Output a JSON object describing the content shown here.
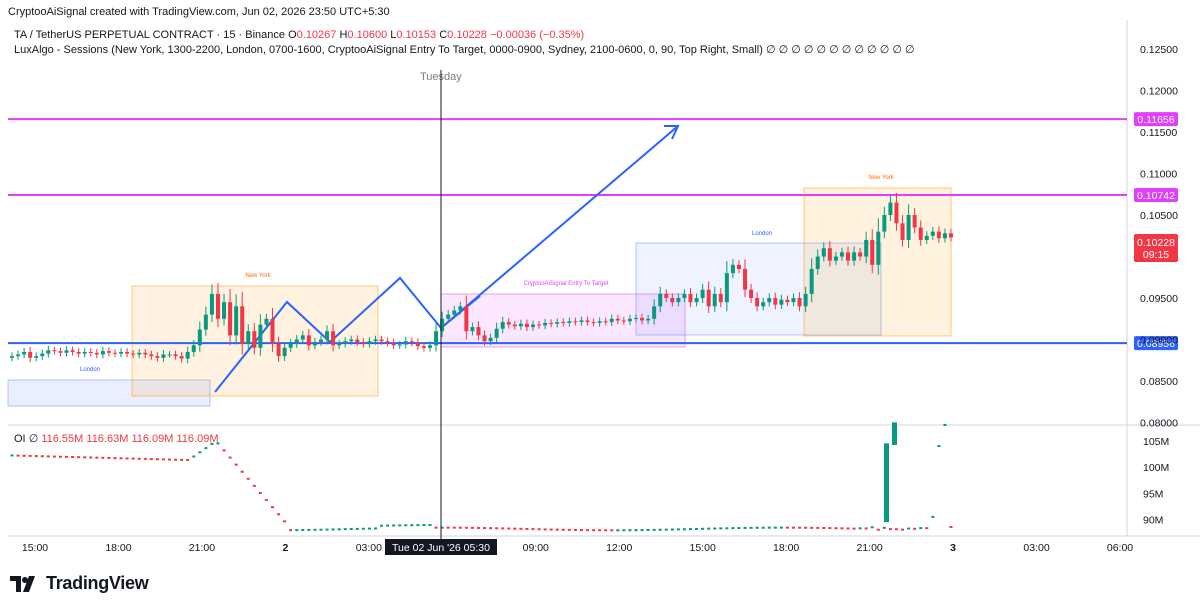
{
  "header": {
    "caption": "CryptooAiSignal created with TradingView.com, Jun 02, 2026 23:50 UTC+5:30"
  },
  "legend": {
    "symbol": "TA / TetherUS PERPETUAL CONTRACT · 15 · Binance",
    "o_label": "O",
    "o_value": "0.10267",
    "h_label": "H",
    "h_value": "0.10600",
    "l_label": "L",
    "l_value": "0.10153",
    "c_label": "C",
    "c_value": "0.10228",
    "change": "−0.00036 (−0.35%)",
    "indicators": "LuxAlgo - Sessions (New York, 1300-2200, London, 0700-1600, CryptooAiSignal  Entry To Target, 0000-0900, Sydney, 2100-0600, 0, 90, Top Right, Small)",
    "indicator_values": "∅ ∅ ∅ ∅ ∅ ∅ ∅ ∅ ∅ ∅ ∅ ∅"
  },
  "oi_legend": {
    "name": "OI",
    "null_symbol": "∅",
    "values": "116.55M  116.63M  116.09M  116.09M"
  },
  "day_label": "Tuesday",
  "sessions": {
    "london": "London",
    "new_york": "New York",
    "entry": "CryptooAiSignal  Entry To Target"
  },
  "brand": {
    "name": "TradingView"
  },
  "colors": {
    "up": "#089981",
    "down": "#f23645",
    "magenta": "#e040fb",
    "blue_line": "#2962ff",
    "price_red": "#f23645"
  },
  "chart_data": {
    "type": "candlestick",
    "title": "TA / TetherUS PERPETUAL CONTRACT · 15 · Binance",
    "price_axis": {
      "ylim": [
        0.0797,
        0.1285
      ],
      "ticks": [
        "0.12500",
        "0.12000",
        "0.11500",
        "0.11000",
        "0.10500",
        "0.10000",
        "0.09500",
        "0.09000",
        "0.08500",
        "0.08000"
      ]
    },
    "x_axis": {
      "ticks": [
        "15:00",
        "18:00",
        "21:00",
        "2",
        "03:00",
        "06:00",
        "09:00",
        "12:00",
        "15:00",
        "18:00",
        "21:00",
        "3",
        "03:00",
        "06:00"
      ],
      "crosshair_label": "Tue 02 Jun '26   05:30"
    },
    "horizontal_levels": [
      {
        "price": 0.11656,
        "label": "0.11656",
        "color": "#e040fb"
      },
      {
        "price": 0.10742,
        "label": "0.10742",
        "color": "#e040fb"
      },
      {
        "price": 0.08956,
        "label": "0.08956",
        "color": "#2962ff"
      }
    ],
    "last_price": {
      "value": "0.10228",
      "countdown": "09:15"
    },
    "candles_close": [
      0.088,
      0.0882,
      0.0885,
      0.0878,
      0.088,
      0.0883,
      0.0887,
      0.0886,
      0.0884,
      0.0887,
      0.0885,
      0.0883,
      0.0885,
      0.0884,
      0.0882,
      0.0886,
      0.0884,
      0.0883,
      0.0885,
      0.0883,
      0.0882,
      0.0884,
      0.0882,
      0.088,
      0.0878,
      0.0882,
      0.0882,
      0.088,
      0.0877,
      0.0885,
      0.0893,
      0.0912,
      0.093,
      0.0955,
      0.0925,
      0.0945,
      0.0905,
      0.094,
      0.0895,
      0.091,
      0.089,
      0.0918,
      0.0925,
      0.0895,
      0.088,
      0.089,
      0.0895,
      0.09,
      0.0905,
      0.0893,
      0.0897,
      0.09,
      0.091,
      0.0893,
      0.0895,
      0.0898,
      0.09,
      0.0897,
      0.0895,
      0.0898,
      0.09,
      0.0898,
      0.0896,
      0.0893,
      0.0894,
      0.0898,
      0.0896,
      0.0892,
      0.089,
      0.0893,
      0.091,
      0.0925,
      0.093,
      0.0935,
      0.094,
      0.091,
      0.0915,
      0.0905,
      0.0898,
      0.0902,
      0.0913,
      0.0921,
      0.0918,
      0.0916,
      0.0919,
      0.0915,
      0.0918,
      0.0917,
      0.092,
      0.0919,
      0.0921,
      0.092,
      0.0922,
      0.0921,
      0.0923,
      0.0921,
      0.092,
      0.0922,
      0.0921,
      0.0925,
      0.0923,
      0.0922,
      0.0925,
      0.0926,
      0.0923,
      0.0925,
      0.094,
      0.0955,
      0.095,
      0.0945,
      0.095,
      0.0955,
      0.0945,
      0.095,
      0.096,
      0.094,
      0.0955,
      0.0945,
      0.098,
      0.099,
      0.0985,
      0.096,
      0.095,
      0.094,
      0.0945,
      0.095,
      0.0942,
      0.0948,
      0.0945,
      0.095,
      0.094,
      0.0955,
      0.0985,
      0.1,
      0.101,
      0.0995,
      0.1,
      0.1005,
      0.0995,
      0.1005,
      0.1,
      0.102,
      0.099,
      0.103,
      0.105,
      0.1065,
      0.104,
      0.102,
      0.105,
      0.1035,
      0.102,
      0.1025,
      0.103,
      0.1022,
      0.1028,
      0.1023
    ]
  },
  "oi_chart": {
    "type": "line",
    "ticks": [
      "105M",
      "100M",
      "95M",
      "90M"
    ],
    "ylim": [
      88,
      108
    ]
  }
}
